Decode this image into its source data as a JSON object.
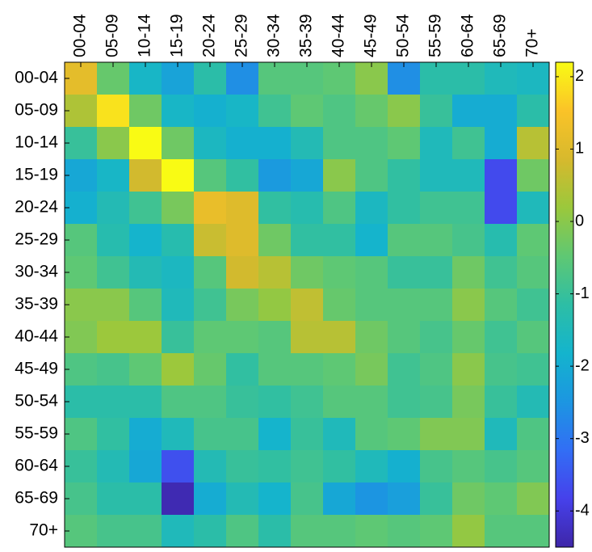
{
  "chart_data": {
    "type": "heatmap",
    "title": "",
    "xlabel": "",
    "ylabel": "",
    "x_categories": [
      "00-04",
      "05-09",
      "10-14",
      "15-19",
      "20-24",
      "25-29",
      "30-34",
      "35-39",
      "40-44",
      "45-49",
      "50-54",
      "55-59",
      "60-64",
      "65-69",
      "70+"
    ],
    "y_categories": [
      "00-04",
      "05-09",
      "10-14",
      "15-19",
      "20-24",
      "25-29",
      "30-34",
      "35-39",
      "40-44",
      "45-49",
      "50-54",
      "55-59",
      "60-64",
      "65-69",
      "70+"
    ],
    "x_axis_position": "top",
    "colormap": "parula",
    "color_range": [
      -4.5,
      2.2
    ],
    "colorbar": {
      "position": "right",
      "ticks": [
        -4,
        -3,
        -2,
        -1,
        0,
        1,
        2
      ],
      "tick_labels": [
        "-4",
        "-3",
        "-2",
        "-1",
        "0",
        "1",
        "2"
      ]
    },
    "values": [
      [
        1.1,
        -0.4,
        -1.7,
        -2.2,
        -1.2,
        -2.6,
        -0.6,
        -0.6,
        -0.5,
        0.0,
        -2.6,
        -1.2,
        -1.2,
        -1.5,
        -1.6
      ],
      [
        0.4,
        1.9,
        -0.3,
        -1.7,
        -1.9,
        -1.7,
        -0.9,
        -0.5,
        -0.7,
        -0.4,
        0.0,
        -1.0,
        -2.0,
        -2.0,
        -1.2
      ],
      [
        -1.0,
        0.0,
        2.2,
        -0.3,
        -1.6,
        -1.9,
        -1.9,
        -1.4,
        -0.7,
        -0.7,
        -0.5,
        -1.5,
        -0.9,
        -2.0,
        0.5
      ],
      [
        -2.1,
        -1.7,
        0.8,
        2.2,
        -0.6,
        -1.1,
        -2.4,
        -2.1,
        0.0,
        -0.7,
        -1.1,
        -1.5,
        -1.5,
        -3.7,
        -0.3
      ],
      [
        -1.9,
        -1.4,
        -0.9,
        -0.2,
        1.2,
        1.0,
        -1.1,
        -1.3,
        -0.7,
        -1.6,
        -1.1,
        -0.9,
        -0.9,
        -3.7,
        -1.5
      ],
      [
        -0.6,
        -1.3,
        -1.8,
        -1.3,
        0.7,
        1.0,
        -0.3,
        -1.1,
        -1.1,
        -1.8,
        -0.6,
        -0.6,
        -0.8,
        -1.3,
        -0.5
      ],
      [
        -0.5,
        -0.9,
        -1.4,
        -1.6,
        -0.6,
        0.8,
        0.5,
        -0.3,
        -0.5,
        -0.6,
        -1.0,
        -1.0,
        -0.3,
        -0.9,
        -0.6
      ],
      [
        0.0,
        0.0,
        -0.6,
        -1.5,
        -0.9,
        -0.2,
        0.1,
        0.6,
        -0.4,
        -0.6,
        -0.6,
        -0.6,
        0.0,
        -0.6,
        -0.9
      ],
      [
        -0.1,
        0.2,
        0.2,
        -1.0,
        -0.5,
        -0.5,
        -0.6,
        0.5,
        0.5,
        -0.3,
        -0.6,
        -0.8,
        -0.4,
        -0.9,
        -0.6
      ],
      [
        -0.7,
        -0.8,
        -0.5,
        0.2,
        -0.4,
        -1.1,
        -0.6,
        -0.6,
        -0.5,
        -0.2,
        -0.9,
        -0.7,
        0.0,
        -0.8,
        -0.9
      ],
      [
        -1.2,
        -1.2,
        -1.2,
        -0.7,
        -0.7,
        -1.0,
        -1.1,
        -0.9,
        -0.6,
        -0.6,
        -0.9,
        -0.8,
        -0.2,
        -1.0,
        -1.4
      ],
      [
        -0.7,
        -1.1,
        -2.0,
        -1.5,
        -0.8,
        -0.8,
        -1.8,
        -1.0,
        -1.5,
        -0.6,
        -0.5,
        -0.1,
        -0.1,
        -1.5,
        -0.7
      ],
      [
        -1.0,
        -1.4,
        -2.1,
        -3.6,
        -1.4,
        -1.0,
        -1.1,
        -0.9,
        -1.1,
        -1.5,
        -1.9,
        -0.8,
        -0.6,
        -0.8,
        -0.6
      ],
      [
        -0.8,
        -1.2,
        -1.2,
        -4.4,
        -2.0,
        -1.4,
        -1.8,
        -0.8,
        -2.1,
        -2.5,
        -2.3,
        -1.0,
        -0.3,
        -0.5,
        -0.1
      ],
      [
        -0.6,
        -0.8,
        -0.8,
        -1.5,
        -1.2,
        -0.7,
        -1.2,
        -0.6,
        -0.6,
        -0.5,
        -0.6,
        -0.5,
        0.1,
        -0.6,
        -0.6
      ]
    ]
  }
}
